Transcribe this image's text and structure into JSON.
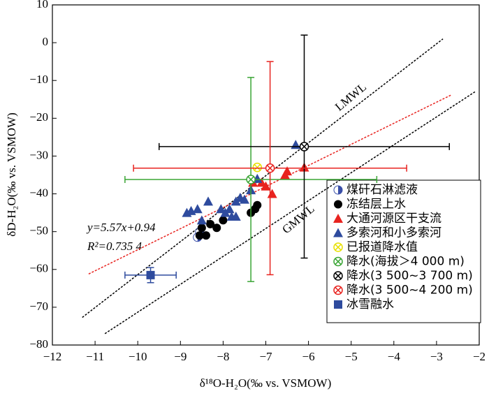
{
  "chart_data": {
    "type": "scatter",
    "xlabel": "δ¹⁸O-H₂O(‰ vs. VSMOW)",
    "ylabel": "δD-H₂O(‰ vs. VSMOW)",
    "xlim": [
      -12,
      -2
    ],
    "xticks": [
      {
        "value": -12,
        "label": "−12"
      },
      {
        "value": -11,
        "label": "−11"
      },
      {
        "value": -10,
        "label": "−10"
      },
      {
        "value": -9,
        "label": "−9"
      },
      {
        "value": -8,
        "label": "−8"
      },
      {
        "value": -7,
        "label": "−7"
      },
      {
        "value": -6,
        "label": "−6"
      },
      {
        "value": -5,
        "label": "−5"
      },
      {
        "value": -4,
        "label": "−4"
      },
      {
        "value": -3,
        "label": "−3"
      },
      {
        "value": -2,
        "label": "−2"
      }
    ],
    "ylim": [
      -80,
      10
    ],
    "yticks": [
      {
        "value": -80,
        "label": "−80"
      },
      {
        "value": -70,
        "label": "−70"
      },
      {
        "value": -60,
        "label": "−60"
      },
      {
        "value": -50,
        "label": "−50"
      },
      {
        "value": -40,
        "label": "−40"
      },
      {
        "value": -30,
        "label": "−30"
      },
      {
        "value": -20,
        "label": "−20"
      },
      {
        "value": -10,
        "label": "−10"
      },
      0,
      10
    ],
    "legend": "lower right",
    "series": [
      {
        "name": "煤矸石淋滤液",
        "marker": "half-circle",
        "color": "#3a4fa8",
        "x": [
          -8.6,
          -8.55
        ],
        "y": [
          -51.5,
          -50
        ]
      },
      {
        "name": "冻结层上水",
        "marker": "circle",
        "color": "#000000",
        "x": [
          -8.55,
          -8.5,
          -8.4,
          -8.3,
          -8.15,
          -8.0,
          -7.35,
          -7.25,
          -7.2
        ],
        "y": [
          -51,
          -49,
          -51,
          -48,
          -49,
          -47,
          -45,
          -44,
          -43
        ]
      },
      {
        "name": "大通河源区干支流",
        "marker": "triangle",
        "color": "#e8231f",
        "x": [
          -7.3,
          -7.1,
          -7.0,
          -6.85,
          -6.55,
          -6.5,
          -6.1
        ],
        "y": [
          -37,
          -37,
          -38,
          -40,
          -35,
          -34,
          -33
        ]
      },
      {
        "name": "多索河和小多索河",
        "marker": "triangle",
        "color": "#2e4b9e",
        "x": [
          -8.85,
          -8.75,
          -8.6,
          -8.5,
          -8.35,
          -8.05,
          -7.95,
          -7.85,
          -7.8,
          -7.7,
          -7.7,
          -7.6,
          -7.5,
          -7.35,
          -7.2,
          -6.3
        ],
        "y": [
          -45,
          -44.5,
          -44,
          -47,
          -42,
          -44,
          -45,
          -44,
          -46,
          -42,
          -46,
          -41,
          -41.5,
          -39,
          -36,
          -27
        ]
      },
      {
        "name": "已报道降水值",
        "marker": "circle-x",
        "color": "#e8e000",
        "x": [
          -7.2
        ],
        "y": [
          -33
        ]
      },
      {
        "name": "降水(海拔＞4 000 m)",
        "marker": "circle-x",
        "color": "#3aa535",
        "x": [
          -7.35
        ],
        "y": [
          -36.2
        ],
        "xerr": [
          2.95
        ],
        "yerr": [
          27
        ]
      },
      {
        "name": "降水(3 500~3 700 m)",
        "marker": "circle-x",
        "color": "#000000",
        "x": [
          -6.1
        ],
        "y": [
          -27.5
        ],
        "xerr": [
          3.4
        ],
        "yerr": [
          29.5
        ]
      },
      {
        "name": "降水(3 500~4 200 m)",
        "marker": "circle-x",
        "color": "#e8231f",
        "x": [
          -6.9
        ],
        "y": [
          -33.2
        ],
        "xerr": [
          3.2
        ],
        "yerr": [
          28.2
        ]
      },
      {
        "name": "冰雪融水",
        "marker": "square",
        "color": "#2e4b9e",
        "x": [
          -9.7
        ],
        "y": [
          -61.5
        ],
        "xerr": [
          0.6
        ],
        "yerr": [
          2
        ]
      }
    ],
    "lines": [
      {
        "name": "LMWL",
        "color": "#000000",
        "x": [
          -11.3,
          -2.85
        ],
        "y": [
          -72.7,
          1
        ]
      },
      {
        "name": "GMWL",
        "color": "#000000",
        "x": [
          -10.77,
          -2.1
        ],
        "y": [
          -77,
          -13
        ]
      },
      {
        "color": "#e8231f",
        "x": [
          -11.15,
          -2.65
        ],
        "y": [
          -61.2,
          -13.8
        ]
      }
    ],
    "annotations": [
      "y=5.57x+0.94",
      "R²=0.735 4"
    ]
  }
}
